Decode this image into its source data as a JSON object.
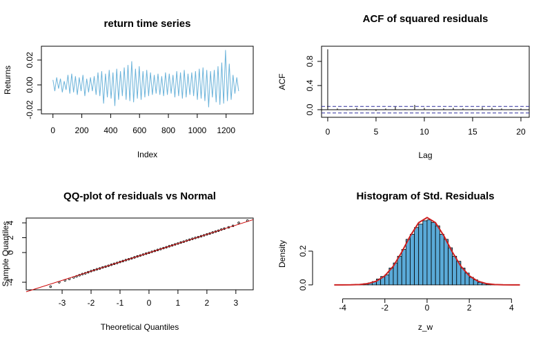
{
  "chart_data": [
    {
      "type": "line",
      "title": "return time series",
      "xlabel": "Index",
      "ylabel": "Returns",
      "x": [
        0,
        13,
        26,
        39,
        52,
        65,
        78,
        91,
        104,
        117,
        130,
        143,
        156,
        169,
        182,
        195,
        208,
        221,
        234,
        247,
        260,
        273,
        286,
        299,
        312,
        325,
        338,
        351,
        364,
        377,
        390,
        403,
        416,
        429,
        442,
        455,
        468,
        481,
        494,
        507,
        520,
        533,
        546,
        559,
        572,
        585,
        598,
        611,
        624,
        637,
        650,
        663,
        676,
        689,
        702,
        715,
        728,
        741,
        754,
        767,
        780,
        793,
        806,
        819,
        832,
        845,
        858,
        871,
        884,
        897,
        910,
        923,
        936,
        949,
        962,
        975,
        988,
        1001,
        1014,
        1027,
        1040,
        1053,
        1066,
        1079,
        1092,
        1105,
        1118,
        1131,
        1144,
        1157,
        1170,
        1183,
        1196,
        1209,
        1222,
        1235,
        1248,
        1261,
        1274,
        1287
      ],
      "values": [
        0.004,
        -0.005,
        0.006,
        -0.003,
        0.005,
        -0.006,
        0.003,
        -0.004,
        0.008,
        -0.007,
        0.009,
        -0.006,
        0.007,
        -0.008,
        0.006,
        -0.005,
        0.008,
        -0.009,
        0.005,
        -0.006,
        0.006,
        -0.005,
        0.007,
        -0.008,
        0.01,
        -0.009,
        0.011,
        -0.015,
        0.009,
        -0.01,
        0.012,
        -0.011,
        0.01,
        -0.017,
        0.013,
        -0.012,
        0.011,
        -0.009,
        0.014,
        -0.012,
        0.016,
        -0.013,
        0.019,
        -0.014,
        0.013,
        -0.011,
        0.015,
        -0.012,
        0.011,
        -0.01,
        0.012,
        -0.009,
        0.01,
        -0.008,
        0.008,
        -0.007,
        0.009,
        -0.008,
        0.007,
        -0.009,
        0.01,
        -0.008,
        0.009,
        -0.007,
        0.008,
        -0.01,
        0.011,
        -0.009,
        0.01,
        -0.011,
        0.012,
        -0.01,
        0.009,
        -0.008,
        0.01,
        -0.009,
        0.011,
        -0.012,
        0.013,
        -0.011,
        0.014,
        -0.013,
        0.012,
        -0.018,
        0.011,
        -0.01,
        0.012,
        -0.014,
        0.015,
        -0.016,
        0.018,
        -0.015,
        0.028,
        -0.013,
        0.017,
        -0.012,
        0.008,
        -0.007,
        0.006,
        -0.005
      ],
      "color": "#6bb3da",
      "box": true,
      "xlim": [
        -80,
        1388
      ],
      "xticks": [
        0,
        200,
        400,
        600,
        800,
        1000,
        1200
      ],
      "ylim": [
        -0.0233,
        0.0311
      ],
      "yticks": [
        -0.02,
        {
          "value": 0,
          "label": "0.00"
        },
        0.02
      ]
    },
    {
      "type": "bar",
      "title": "ACF of squared residuals",
      "xlabel": "Lag",
      "ylabel": "ACF",
      "x": [
        0,
        1,
        2,
        3,
        4,
        5,
        6,
        7,
        8,
        9,
        10,
        11,
        12,
        13,
        14,
        15,
        16,
        17,
        18,
        19,
        20
      ],
      "values": [
        1,
        0.02,
        -0.01,
        0.03,
        0.01,
        -0.02,
        0.02,
        0.05,
        0.01,
        0.08,
        0.03,
        -0.01,
        0.02,
        0.03,
        0.02,
        0.01,
        0.04,
        0.03,
        0.02,
        0.01,
        0.02
      ],
      "color": "#000000",
      "conf_bounds": [
        -0.054,
        0.054
      ],
      "conf_color": "#2a2a9a",
      "box": true,
      "xlim": [
        -0.64,
        20.86
      ],
      "xticks": [
        0,
        5,
        10,
        15,
        20
      ],
      "ylim": [
        -0.126,
        1.051
      ],
      "yticks": [
        {
          "value": 0,
          "label": "0.0"
        },
        0.4,
        0.8
      ]
    },
    {
      "type": "scatter",
      "title": "QQ-plot of residuals vs Normal",
      "xlabel": "Theoretical Quantiles",
      "ylabel": "Sample Quantiles",
      "x": [
        -3.4,
        -3.1,
        -2.9,
        -2.75,
        -2.6,
        -2.5,
        -2.4,
        -2.3,
        -2.2,
        -2.1,
        -2.0,
        -1.9,
        -1.8,
        -1.7,
        -1.6,
        -1.5,
        -1.4,
        -1.3,
        -1.2,
        -1.1,
        -1.0,
        -0.9,
        -0.8,
        -0.7,
        -0.6,
        -0.5,
        -0.4,
        -0.3,
        -0.2,
        -0.1,
        0,
        0.1,
        0.2,
        0.3,
        0.4,
        0.5,
        0.6,
        0.7,
        0.8,
        0.9,
        1.0,
        1.1,
        1.2,
        1.3,
        1.4,
        1.5,
        1.6,
        1.7,
        1.8,
        1.9,
        2.0,
        2.1,
        2.2,
        2.3,
        2.4,
        2.5,
        2.6,
        2.75,
        2.9,
        3.1,
        3.4
      ],
      "values": [
        -4.6,
        -4.0,
        -3.75,
        -3.55,
        -3.35,
        -3.2,
        -3.05,
        -2.9,
        -2.8,
        -2.65,
        -2.5,
        -2.38,
        -2.25,
        -2.15,
        -2.0,
        -1.9,
        -1.78,
        -1.65,
        -1.52,
        -1.4,
        -1.27,
        -1.15,
        -1.02,
        -0.9,
        -0.78,
        -0.65,
        -0.52,
        -0.4,
        -0.27,
        -0.15,
        -0.03,
        0.1,
        0.22,
        0.35,
        0.47,
        0.6,
        0.72,
        0.85,
        0.97,
        1.1,
        1.22,
        1.35,
        1.47,
        1.6,
        1.72,
        1.85,
        1.97,
        2.08,
        2.2,
        2.32,
        2.45,
        2.56,
        2.7,
        2.82,
        2.95,
        3.1,
        3.22,
        3.4,
        3.6,
        4.0,
        4.3
      ],
      "color": "#000000",
      "ref_line": {
        "intercept": -0.03,
        "slope": 1.24,
        "color": "#cc0000"
      },
      "box": true,
      "xlim": [
        -4.24,
        3.6
      ],
      "xticks": [
        -3,
        -2,
        -1,
        0,
        1,
        2,
        3
      ],
      "ylim": [
        -5.02,
        4.65
      ],
      "yticks": [
        -4,
        0,
        2,
        4
      ]
    },
    {
      "type": "histogram",
      "title": "Histogram of Std. Residuals",
      "xlabel": "z_w",
      "ylabel": "Density",
      "bins": [
        -3.4,
        -3.2,
        -3.0,
        -2.8,
        -2.6,
        -2.4,
        -2.2,
        -2.0,
        -1.8,
        -1.6,
        -1.4,
        -1.2,
        -1.0,
        -0.8,
        -0.6,
        -0.4,
        -0.2,
        0,
        0.2,
        0.4,
        0.6,
        0.8,
        1.0,
        1.2,
        1.4,
        1.6,
        1.8,
        2.0,
        2.2,
        2.4,
        2.6,
        2.8,
        3.0,
        3.2,
        3.4
      ],
      "values": [
        0.004,
        0.004,
        0.008,
        0.012,
        0.02,
        0.035,
        0.05,
        0.06,
        0.1,
        0.13,
        0.17,
        0.21,
        0.27,
        0.3,
        0.34,
        0.36,
        0.38,
        0.385,
        0.37,
        0.35,
        0.3,
        0.27,
        0.22,
        0.17,
        0.14,
        0.1,
        0.07,
        0.045,
        0.03,
        0.015,
        0.01,
        0.004,
        0.002,
        0.002
      ],
      "color": "#5aaad8",
      "box": false,
      "density": {
        "x": [
          -4.4,
          -4.0,
          -3.6,
          -3.2,
          -2.8,
          -2.4,
          -2.0,
          -1.6,
          -1.2,
          -0.8,
          -0.4,
          0,
          0.4,
          0.8,
          1.2,
          1.6,
          2.0,
          2.4,
          2.8,
          3.2,
          3.6,
          4.0,
          4.4
        ],
        "y": [
          0,
          0.0001,
          0.0006,
          0.0024,
          0.0079,
          0.0224,
          0.054,
          0.1109,
          0.1942,
          0.2897,
          0.3683,
          0.3989,
          0.3683,
          0.2897,
          0.1942,
          0.1109,
          0.054,
          0.0224,
          0.0079,
          0.0024,
          0.0006,
          0.0001,
          0
        ],
        "color": "#cc1f1f"
      },
      "xlim": [
        -5.0,
        4.84
      ],
      "xticks": [
        -4,
        -2,
        0,
        2,
        4
      ],
      "ylim": [
        -0.029,
        0.396
      ],
      "yticks": [
        {
          "value": 0,
          "label": "0.0"
        },
        0.2
      ]
    }
  ]
}
